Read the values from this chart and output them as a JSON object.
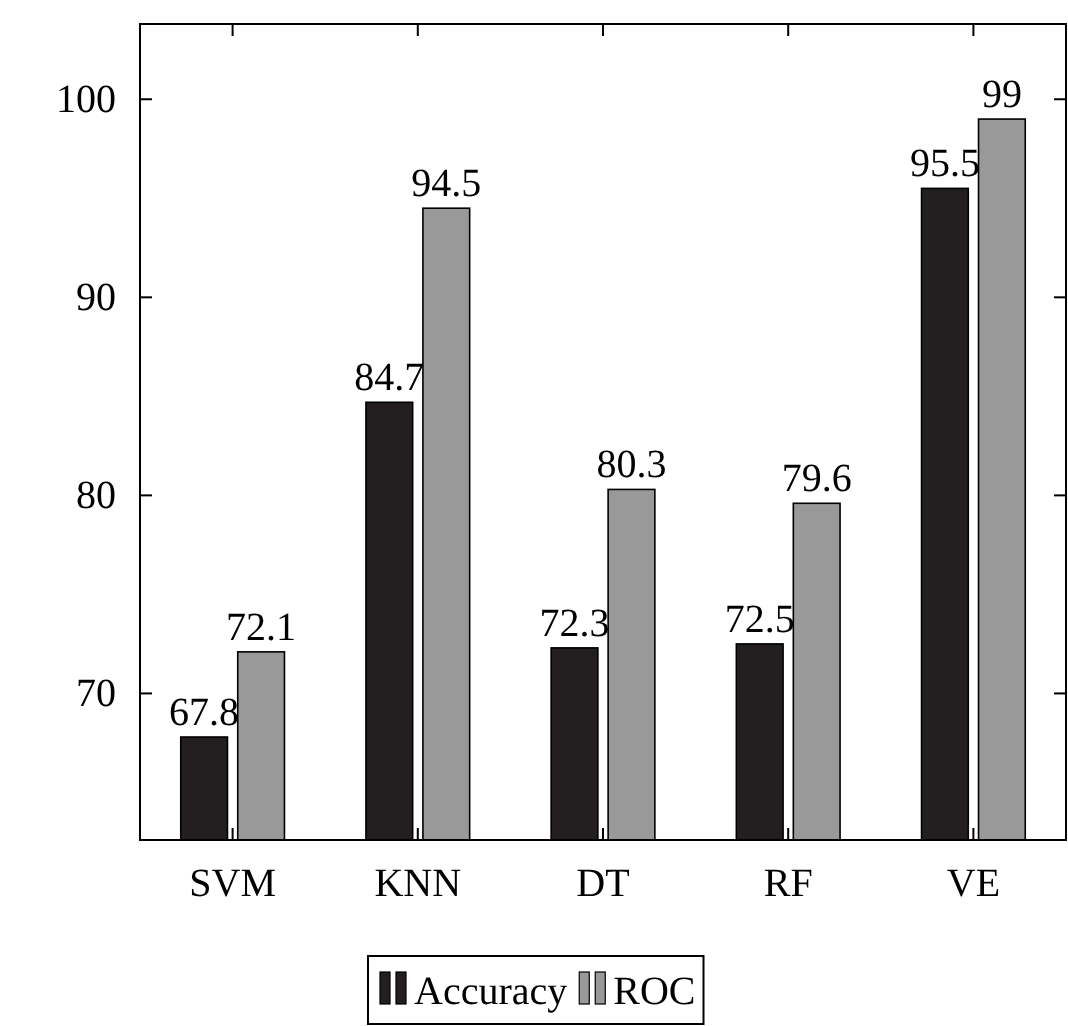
{
  "chart_data": {
    "type": "bar",
    "categories": [
      "SVM",
      "KNN",
      "DT",
      "RF",
      "VE"
    ],
    "series": [
      {
        "name": "Accuracy",
        "color": "#231f20",
        "values": [
          67.8,
          84.7,
          72.3,
          72.5,
          95.5
        ]
      },
      {
        "name": "ROC",
        "color": "#999999",
        "values": [
          72.1,
          94.5,
          80.3,
          79.6,
          99
        ]
      }
    ],
    "ylim": [
      62.6,
      103.8
    ],
    "yticks": [
      70,
      80,
      90,
      100
    ],
    "data_labels": true,
    "legend": "bottom",
    "grid": false
  }
}
